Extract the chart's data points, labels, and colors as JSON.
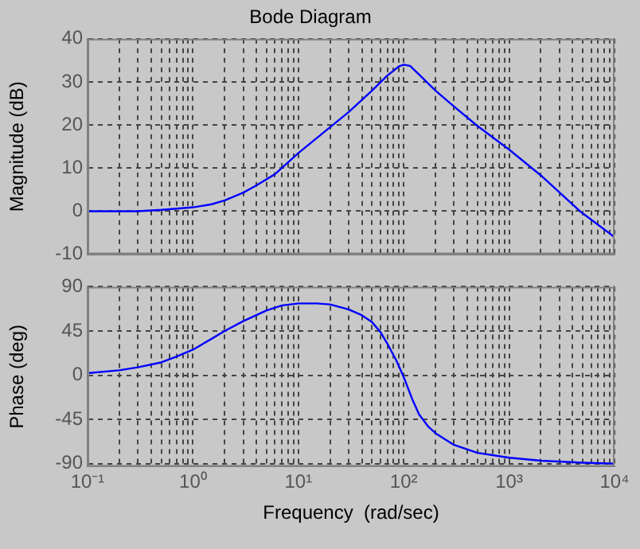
{
  "chart_data": [
    {
      "type": "line",
      "title": "Bode Diagram",
      "ylabel": "Magnitude (dB)",
      "log": "x",
      "grid": true,
      "marker": "none",
      "line_style": "solid",
      "legend": false,
      "tick_labels": "y",
      "xlim": [
        0.1,
        10000
      ],
      "ylim": [
        -10,
        40
      ],
      "yticks": [
        -10,
        0,
        10,
        20,
        30,
        40
      ],
      "xticks": [
        {
          "value": 0.1,
          "label": null
        },
        {
          "value": 0.2,
          "label": null
        },
        {
          "value": 0.3,
          "label": null
        },
        {
          "value": 0.4,
          "label": null
        },
        {
          "value": 0.5,
          "label": null
        },
        {
          "value": 0.6,
          "label": null
        },
        {
          "value": 0.7,
          "label": null
        },
        {
          "value": 0.8,
          "label": null
        },
        {
          "value": 0.9,
          "label": null
        },
        {
          "value": 1,
          "label": null
        },
        {
          "value": 2,
          "label": null
        },
        {
          "value": 3,
          "label": null
        },
        {
          "value": 4,
          "label": null
        },
        {
          "value": 5,
          "label": null
        },
        {
          "value": 6,
          "label": null
        },
        {
          "value": 7,
          "label": null
        },
        {
          "value": 8,
          "label": null
        },
        {
          "value": 9,
          "label": null
        },
        {
          "value": 10,
          "label": null
        },
        {
          "value": 20,
          "label": null
        },
        {
          "value": 30,
          "label": null
        },
        {
          "value": 40,
          "label": null
        },
        {
          "value": 50,
          "label": null
        },
        {
          "value": 60,
          "label": null
        },
        {
          "value": 70,
          "label": null
        },
        {
          "value": 80,
          "label": null
        },
        {
          "value": 90,
          "label": null
        },
        {
          "value": 100,
          "label": null
        },
        {
          "value": 200,
          "label": null
        },
        {
          "value": 300,
          "label": null
        },
        {
          "value": 400,
          "label": null
        },
        {
          "value": 500,
          "label": null
        },
        {
          "value": 600,
          "label": null
        },
        {
          "value": 700,
          "label": null
        },
        {
          "value": 800,
          "label": null
        },
        {
          "value": 900,
          "label": null
        },
        {
          "value": 1000,
          "label": null
        },
        {
          "value": 2000,
          "label": null
        },
        {
          "value": 3000,
          "label": null
        },
        {
          "value": 4000,
          "label": null
        },
        {
          "value": 5000,
          "label": null
        },
        {
          "value": 6000,
          "label": null
        },
        {
          "value": 7000,
          "label": null
        },
        {
          "value": 8000,
          "label": null
        },
        {
          "value": 9000,
          "label": null
        },
        {
          "value": 10000,
          "label": null
        }
      ],
      "series": [
        {
          "color": "#0000ff",
          "x": [
            0.1,
            0.3,
            0.5,
            0.7,
            1,
            1.5,
            2,
            3,
            4,
            6,
            10,
            15,
            20,
            30,
            50,
            70,
            90,
            100,
            115,
            150,
            200,
            300,
            500,
            1000,
            2000,
            4700,
            10000
          ],
          "values": [
            0,
            0,
            0.3,
            0.6,
            0.9,
            1.6,
            2.5,
            4.3,
            6,
            8.6,
            13.5,
            17,
            19.5,
            23,
            28,
            31.5,
            33.6,
            34,
            33.7,
            31,
            28,
            24.3,
            19.8,
            14.3,
            8.3,
            0,
            -6
          ]
        }
      ]
    },
    {
      "type": "line",
      "xlabel": "Frequency  (rad/sec)",
      "ylabel": "Phase (deg)",
      "log": "x",
      "grid": true,
      "marker": "none",
      "line_style": "solid",
      "legend": false,
      "xlim": [
        0.1,
        10000
      ],
      "ylim": [
        -93,
        90
      ],
      "yticks": [
        -90,
        -45,
        0,
        45,
        90
      ],
      "xticks": [
        {
          "value": 0.1,
          "label": "10⁻¹"
        },
        {
          "value": 0.2,
          "label": null
        },
        {
          "value": 0.3,
          "label": null
        },
        {
          "value": 0.4,
          "label": null
        },
        {
          "value": 0.5,
          "label": null
        },
        {
          "value": 0.6,
          "label": null
        },
        {
          "value": 0.7,
          "label": null
        },
        {
          "value": 0.8,
          "label": null
        },
        {
          "value": 0.9,
          "label": null
        },
        {
          "value": 1,
          "label": "10⁰"
        },
        {
          "value": 2,
          "label": null
        },
        {
          "value": 3,
          "label": null
        },
        {
          "value": 4,
          "label": null
        },
        {
          "value": 5,
          "label": null
        },
        {
          "value": 6,
          "label": null
        },
        {
          "value": 7,
          "label": null
        },
        {
          "value": 8,
          "label": null
        },
        {
          "value": 9,
          "label": null
        },
        {
          "value": 10,
          "label": "10¹"
        },
        {
          "value": 20,
          "label": null
        },
        {
          "value": 30,
          "label": null
        },
        {
          "value": 40,
          "label": null
        },
        {
          "value": 50,
          "label": null
        },
        {
          "value": 60,
          "label": null
        },
        {
          "value": 70,
          "label": null
        },
        {
          "value": 80,
          "label": null
        },
        {
          "value": 90,
          "label": null
        },
        {
          "value": 100,
          "label": "10²"
        },
        {
          "value": 200,
          "label": null
        },
        {
          "value": 300,
          "label": null
        },
        {
          "value": 400,
          "label": null
        },
        {
          "value": 500,
          "label": null
        },
        {
          "value": 600,
          "label": null
        },
        {
          "value": 700,
          "label": null
        },
        {
          "value": 800,
          "label": null
        },
        {
          "value": 900,
          "label": null
        },
        {
          "value": 1000,
          "label": "10³"
        },
        {
          "value": 2000,
          "label": null
        },
        {
          "value": 3000,
          "label": null
        },
        {
          "value": 4000,
          "label": null
        },
        {
          "value": 5000,
          "label": null
        },
        {
          "value": 6000,
          "label": null
        },
        {
          "value": 7000,
          "label": null
        },
        {
          "value": 8000,
          "label": null
        },
        {
          "value": 9000,
          "label": null
        },
        {
          "value": 10000,
          "label": "10⁴"
        }
      ],
      "series": [
        {
          "color": "#0000ff",
          "x": [
            0.1,
            0.2,
            0.3,
            0.5,
            0.7,
            1,
            1.5,
            2,
            3,
            5,
            7,
            10,
            15,
            20,
            30,
            40,
            50,
            60,
            70,
            85,
            100,
            120,
            140,
            170,
            200,
            300,
            500,
            1000,
            2000,
            5000,
            10000
          ],
          "values": [
            2,
            5,
            8,
            13,
            19,
            26,
            37,
            45,
            55,
            66,
            71,
            73,
            73,
            72,
            67,
            61,
            54,
            44,
            32,
            15,
            -2,
            -24,
            -40,
            -52,
            -59,
            -71,
            -79,
            -84,
            -87,
            -89,
            -90
          ]
        }
      ]
    }
  ]
}
